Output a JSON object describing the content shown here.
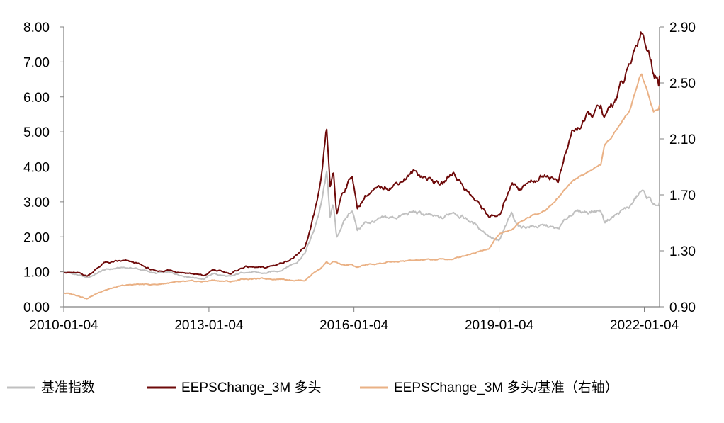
{
  "colors": {
    "benchmark": "#c0c0c0",
    "long": "#6e0a0a",
    "ratio": "#eab185",
    "axis": "#808080"
  },
  "chart_data": {
    "type": "line",
    "x_tick_labels": [
      "2010-01-04",
      "2013-01-04",
      "2016-01-04",
      "2019-01-04",
      "2022-01-04"
    ],
    "x_range": [
      "2010-01-04",
      "2022-04-29"
    ],
    "y_left": {
      "range": [
        0,
        8
      ],
      "tick_labels": [
        "0.00",
        "1.00",
        "2.00",
        "3.00",
        "4.00",
        "5.00",
        "6.00",
        "7.00",
        "8.00"
      ]
    },
    "y_right": {
      "range": [
        0.9,
        2.9
      ],
      "tick_labels": [
        "0.90",
        "1.30",
        "1.70",
        "2.10",
        "2.50",
        "2.90"
      ]
    },
    "grid": false,
    "legend_position": "bottom",
    "series": [
      {
        "name": "基准指数",
        "axis": "left",
        "points": [
          [
            "2010-01-04",
            1.0
          ],
          [
            "2010-05-01",
            0.9
          ],
          [
            "2010-07-01",
            0.82
          ],
          [
            "2010-11-01",
            1.05
          ],
          [
            "2011-04-01",
            1.12
          ],
          [
            "2011-07-01",
            1.1
          ],
          [
            "2011-12-01",
            0.95
          ],
          [
            "2012-03-01",
            0.98
          ],
          [
            "2012-09-01",
            0.85
          ],
          [
            "2012-12-01",
            0.8
          ],
          [
            "2013-02-01",
            0.95
          ],
          [
            "2013-06-20",
            0.85
          ],
          [
            "2013-10-01",
            1.0
          ],
          [
            "2014-03-01",
            0.95
          ],
          [
            "2014-07-01",
            1.05
          ],
          [
            "2014-11-01",
            1.3
          ],
          [
            "2014-12-31",
            1.55
          ],
          [
            "2015-03-01",
            2.1
          ],
          [
            "2015-05-01",
            2.9
          ],
          [
            "2015-06-12",
            3.8
          ],
          [
            "2015-07-08",
            2.6
          ],
          [
            "2015-08-01",
            2.9
          ],
          [
            "2015-08-26",
            1.95
          ],
          [
            "2015-10-01",
            2.3
          ],
          [
            "2015-12-22",
            2.8
          ],
          [
            "2016-01-28",
            2.2
          ],
          [
            "2016-04-01",
            2.4
          ],
          [
            "2016-11-01",
            2.55
          ],
          [
            "2017-04-01",
            2.7
          ],
          [
            "2017-11-01",
            2.5
          ],
          [
            "2018-01-24",
            2.75
          ],
          [
            "2018-06-01",
            2.45
          ],
          [
            "2018-10-19",
            2.05
          ],
          [
            "2019-01-04",
            1.85
          ],
          [
            "2019-04-08",
            2.65
          ],
          [
            "2019-06-01",
            2.3
          ],
          [
            "2020-01-01",
            2.3
          ],
          [
            "2020-03-23",
            2.2
          ],
          [
            "2020-07-10",
            2.7
          ],
          [
            "2021-02-10",
            2.75
          ],
          [
            "2021-03-10",
            2.45
          ],
          [
            "2021-09-15",
            2.85
          ],
          [
            "2021-12-13",
            3.3
          ],
          [
            "2022-03-15",
            2.95
          ],
          [
            "2022-04-27",
            2.8
          ],
          [
            "2022-04-29",
            2.9
          ]
        ]
      },
      {
        "name": "EEPSChange_3M 多头",
        "axis": "left",
        "points": [
          [
            "2010-01-04",
            1.0
          ],
          [
            "2010-05-01",
            0.95
          ],
          [
            "2010-07-01",
            0.88
          ],
          [
            "2010-11-01",
            1.25
          ],
          [
            "2011-04-01",
            1.3
          ],
          [
            "2011-07-01",
            1.25
          ],
          [
            "2011-12-01",
            1.0
          ],
          [
            "2012-03-01",
            1.05
          ],
          [
            "2012-09-01",
            0.95
          ],
          [
            "2012-12-01",
            0.88
          ],
          [
            "2013-02-01",
            1.05
          ],
          [
            "2013-06-20",
            0.95
          ],
          [
            "2013-10-01",
            1.15
          ],
          [
            "2014-03-01",
            1.1
          ],
          [
            "2014-07-01",
            1.25
          ],
          [
            "2014-11-01",
            1.45
          ],
          [
            "2014-12-31",
            1.7
          ],
          [
            "2015-03-01",
            2.5
          ],
          [
            "2015-05-01",
            3.5
          ],
          [
            "2015-06-12",
            5.0
          ],
          [
            "2015-07-08",
            3.4
          ],
          [
            "2015-08-01",
            3.8
          ],
          [
            "2015-08-26",
            2.6
          ],
          [
            "2015-10-01",
            3.2
          ],
          [
            "2015-12-22",
            3.8
          ],
          [
            "2016-01-28",
            2.8
          ],
          [
            "2016-04-01",
            3.2
          ],
          [
            "2016-11-01",
            3.5
          ],
          [
            "2017-04-01",
            3.85
          ],
          [
            "2017-11-01",
            3.5
          ],
          [
            "2018-01-24",
            3.85
          ],
          [
            "2018-06-01",
            3.2
          ],
          [
            "2018-10-19",
            2.6
          ],
          [
            "2019-01-04",
            2.55
          ],
          [
            "2019-04-08",
            3.6
          ],
          [
            "2019-06-01",
            3.4
          ],
          [
            "2020-01-01",
            3.8
          ],
          [
            "2020-03-23",
            3.6
          ],
          [
            "2020-07-10",
            5.0
          ],
          [
            "2021-02-10",
            5.7
          ],
          [
            "2021-03-10",
            5.3
          ],
          [
            "2021-09-15",
            6.8
          ],
          [
            "2021-12-13",
            8.0
          ],
          [
            "2022-03-15",
            6.8
          ],
          [
            "2022-04-27",
            6.4
          ],
          [
            "2022-04-29",
            6.8
          ]
        ]
      },
      {
        "name": "EEPSChange_3M 多头/基准（右轴）",
        "axis": "right",
        "points": [
          [
            "2010-01-04",
            1.0
          ],
          [
            "2010-05-01",
            0.98
          ],
          [
            "2010-07-01",
            0.96
          ],
          [
            "2010-11-01",
            1.02
          ],
          [
            "2011-04-01",
            1.05
          ],
          [
            "2011-07-01",
            1.06
          ],
          [
            "2011-12-01",
            1.06
          ],
          [
            "2012-03-01",
            1.07
          ],
          [
            "2012-09-01",
            1.08
          ],
          [
            "2012-12-01",
            1.08
          ],
          [
            "2013-02-01",
            1.09
          ],
          [
            "2013-06-20",
            1.08
          ],
          [
            "2013-10-01",
            1.1
          ],
          [
            "2014-03-01",
            1.1
          ],
          [
            "2014-07-01",
            1.1
          ],
          [
            "2014-11-01",
            1.09
          ],
          [
            "2014-12-31",
            1.09
          ],
          [
            "2015-03-01",
            1.14
          ],
          [
            "2015-05-01",
            1.18
          ],
          [
            "2015-06-12",
            1.22
          ],
          [
            "2015-07-08",
            1.2
          ],
          [
            "2015-08-01",
            1.22
          ],
          [
            "2015-08-26",
            1.21
          ],
          [
            "2015-10-01",
            1.2
          ],
          [
            "2015-12-22",
            1.2
          ],
          [
            "2016-01-28",
            1.18
          ],
          [
            "2016-04-01",
            1.2
          ],
          [
            "2016-11-01",
            1.22
          ],
          [
            "2017-04-01",
            1.23
          ],
          [
            "2017-11-01",
            1.24
          ],
          [
            "2018-01-24",
            1.24
          ],
          [
            "2018-06-01",
            1.28
          ],
          [
            "2018-10-19",
            1.32
          ],
          [
            "2019-01-04",
            1.42
          ],
          [
            "2019-04-08",
            1.45
          ],
          [
            "2019-06-01",
            1.5
          ],
          [
            "2020-01-01",
            1.6
          ],
          [
            "2020-03-23",
            1.68
          ],
          [
            "2020-07-10",
            1.8
          ],
          [
            "2021-02-10",
            1.92
          ],
          [
            "2021-03-10",
            2.05
          ],
          [
            "2021-09-15",
            2.3
          ],
          [
            "2021-12-13",
            2.58
          ],
          [
            "2022-03-15",
            2.3
          ],
          [
            "2022-04-27",
            2.32
          ],
          [
            "2022-04-29",
            2.35
          ]
        ]
      }
    ]
  }
}
